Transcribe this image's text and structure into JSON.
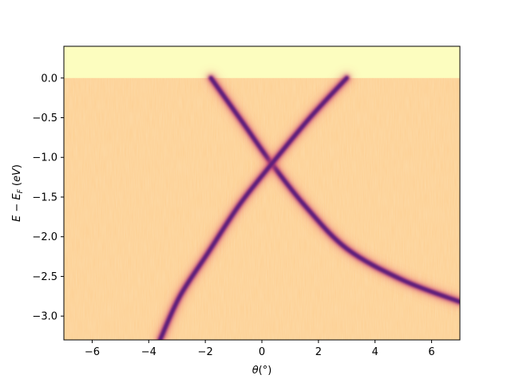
{
  "chart_data": {
    "type": "heatmap",
    "title": "",
    "xlabel": "θ(°)",
    "ylabel": "E − E_F (eV)",
    "xlim": [
      -7,
      7
    ],
    "ylim": [
      -3.3,
      0.4
    ],
    "x_ticks": [
      -6,
      -4,
      -2,
      0,
      2,
      4,
      6
    ],
    "x_tick_labels": [
      "−6",
      "−4",
      "−2",
      "0",
      "2",
      "4",
      "6"
    ],
    "y_ticks": [
      0.0,
      -0.5,
      -1.0,
      -1.5,
      -2.0,
      -2.5,
      -3.0
    ],
    "y_tick_labels": [
      "0.0",
      "−0.5",
      "−1.0",
      "−1.5",
      "−2.0",
      "−2.5",
      "−3.0"
    ],
    "colormap": "magma_r",
    "fermi_level": 0.0,
    "above_fermi_color": "#fcfdbf",
    "background_color": "#fdcf92",
    "band_color": "#5c1a7a",
    "crossing_point": {
      "theta": 0.35,
      "energy": -1.08
    },
    "bands": [
      {
        "name": "",
        "points": [
          [
            -1.8,
            0.0
          ],
          [
            -0.7,
            -0.55
          ],
          [
            0.35,
            -1.08
          ],
          [
            1.5,
            -1.6
          ],
          [
            3.0,
            -2.15
          ],
          [
            5.0,
            -2.55
          ],
          [
            7.0,
            -2.82
          ]
        ]
      },
      {
        "name": "",
        "points": [
          [
            3.0,
            0.0
          ],
          [
            1.7,
            -0.5
          ],
          [
            0.35,
            -1.08
          ],
          [
            -0.8,
            -1.6
          ],
          [
            -1.9,
            -2.2
          ],
          [
            -2.9,
            -2.75
          ],
          [
            -3.6,
            -3.3
          ]
        ]
      }
    ]
  }
}
